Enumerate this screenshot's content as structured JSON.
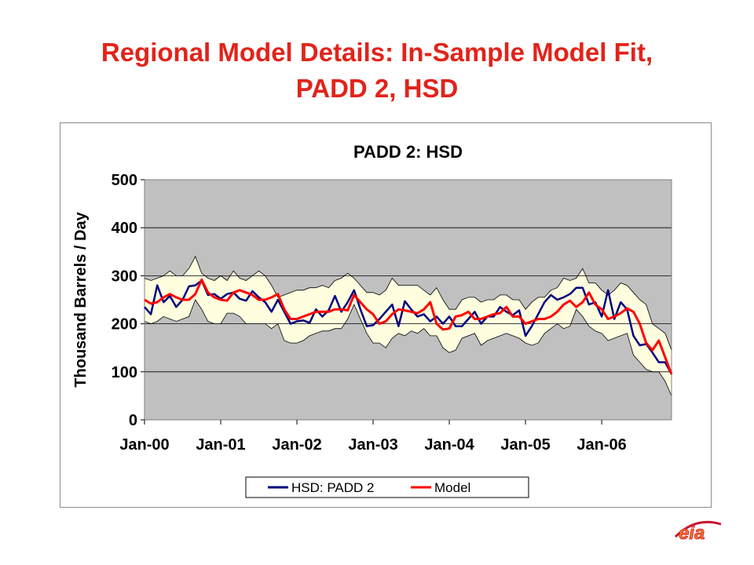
{
  "slide": {
    "title_line1": "Regional Model Details:  In-Sample Model Fit,",
    "title_line2": "PADD 2, HSD"
  },
  "logo": {
    "text": "eia",
    "color": "#f47b20",
    "stroke": "#c8102e"
  },
  "colors": {
    "title": "#e2231a",
    "plot_bg": "#c0c0c0",
    "band_fill": "#ffffe0",
    "actual": "#000080",
    "model": "#ff0000"
  },
  "chart_data": {
    "type": "line",
    "title": "PADD 2:  HSD",
    "xlabel": "",
    "ylabel": "Thousand Barrels / Day",
    "ylim": [
      0,
      500
    ],
    "yticks": [
      0,
      100,
      200,
      300,
      400,
      500
    ],
    "grid": true,
    "legend_position": "bottom",
    "x_start": "Jan-00",
    "x_frequency": "monthly",
    "xticks": [
      "Jan-00",
      "Jan-01",
      "Jan-02",
      "Jan-03",
      "Jan-04",
      "Jan-05",
      "Jan-06"
    ],
    "series": [
      {
        "name": "HSD:  PADD 2",
        "color": "#000080",
        "values": [
          235,
          220,
          280,
          245,
          258,
          235,
          250,
          278,
          280,
          290,
          260,
          262,
          252,
          262,
          265,
          252,
          248,
          268,
          255,
          245,
          225,
          250,
          225,
          200,
          205,
          207,
          202,
          230,
          215,
          228,
          258,
          225,
          245,
          270,
          230,
          195,
          197,
          210,
          225,
          240,
          195,
          247,
          230,
          215,
          220,
          205,
          215,
          200,
          215,
          195,
          195,
          210,
          225,
          200,
          215,
          215,
          235,
          225,
          218,
          228,
          175,
          195,
          220,
          245,
          260,
          250,
          255,
          262,
          275,
          275,
          240,
          245,
          215,
          270,
          210,
          245,
          230,
          175,
          155,
          158,
          140,
          120,
          120,
          95
        ],
        "band_lower": [
          205,
          200,
          205,
          215,
          210,
          205,
          210,
          215,
          250,
          230,
          205,
          200,
          200,
          222,
          222,
          215,
          200,
          200,
          200,
          200,
          190,
          200,
          165,
          160,
          160,
          165,
          175,
          180,
          185,
          185,
          190,
          190,
          210,
          240,
          210,
          180,
          160,
          160,
          150,
          170,
          180,
          175,
          185,
          180,
          190,
          175,
          175,
          150,
          140,
          145,
          170,
          175,
          180,
          155,
          165,
          170,
          175,
          180,
          175,
          170,
          160,
          155,
          160,
          180,
          190,
          200,
          190,
          195,
          230,
          215,
          195,
          185,
          180,
          165,
          170,
          175,
          180,
          135,
          120,
          105,
          100,
          100,
          80,
          50
        ],
        "band_upper": [
          295,
          290,
          295,
          300,
          310,
          300,
          300,
          315,
          340,
          305,
          295,
          290,
          300,
          290,
          310,
          295,
          290,
          300,
          310,
          300,
          280,
          255,
          260,
          265,
          270,
          270,
          275,
          275,
          280,
          275,
          290,
          295,
          305,
          295,
          280,
          265,
          265,
          260,
          270,
          295,
          280,
          280,
          280,
          280,
          270,
          260,
          275,
          250,
          230,
          230,
          250,
          255,
          255,
          245,
          250,
          250,
          260,
          260,
          250,
          250,
          230,
          245,
          255,
          255,
          270,
          275,
          295,
          290,
          295,
          315,
          285,
          285,
          270,
          260,
          270,
          285,
          280,
          265,
          250,
          240,
          200,
          190,
          180,
          145
        ]
      },
      {
        "name": "Model",
        "color": "#ff0000",
        "values": [
          250,
          242,
          245,
          255,
          262,
          255,
          250,
          250,
          262,
          292,
          265,
          255,
          250,
          248,
          265,
          270,
          265,
          260,
          250,
          250,
          255,
          262,
          230,
          210,
          210,
          215,
          220,
          225,
          225,
          225,
          230,
          230,
          228,
          260,
          245,
          230,
          220,
          200,
          205,
          220,
          230,
          228,
          225,
          222,
          230,
          245,
          200,
          188,
          190,
          215,
          218,
          225,
          210,
          210,
          215,
          220,
          222,
          235,
          215,
          215,
          200,
          205,
          210,
          210,
          215,
          225,
          240,
          248,
          235,
          245,
          265,
          240,
          230,
          210,
          215,
          222,
          232,
          225,
          200,
          160,
          145,
          165,
          130,
          95
        ]
      }
    ]
  }
}
